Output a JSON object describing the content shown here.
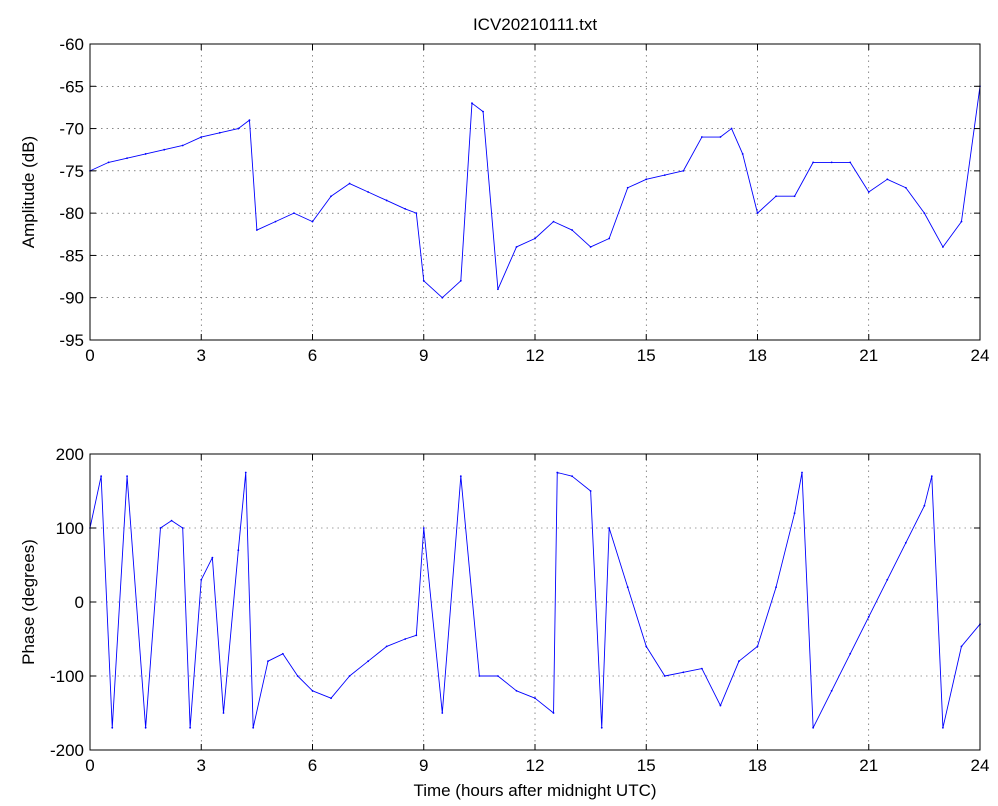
{
  "title": "ICV20210111.txt",
  "colors": {
    "series": "#0000ff",
    "axes": "#000000",
    "background": "#ffffff"
  },
  "chart_data": [
    {
      "type": "line",
      "title": "ICV20210111.txt",
      "xlabel": "",
      "ylabel": "Amplitude (dB)",
      "xlim": [
        0,
        24
      ],
      "ylim": [
        -95,
        -60
      ],
      "xticks": [
        "0",
        "3",
        "6",
        "9",
        "12",
        "15",
        "18",
        "21",
        "24"
      ],
      "yticks": [
        "-60",
        "-65",
        "-70",
        "-75",
        "-80",
        "-85",
        "-90",
        "-95"
      ],
      "grid": true,
      "series": [
        {
          "x": [
            0,
            0.5,
            1,
            1.5,
            2,
            2.5,
            3,
            3.5,
            4,
            4.3,
            4.5,
            5,
            5.5,
            6,
            6.5,
            7,
            7.5,
            8,
            8.5,
            8.8,
            9,
            9.5,
            10,
            10.3,
            10.6,
            11,
            11.5,
            12,
            12.5,
            13,
            13.5,
            14,
            14.5,
            15,
            15.5,
            16,
            16.5,
            17,
            17.3,
            17.6,
            18,
            18.5,
            19,
            19.5,
            20,
            20.5,
            21,
            21.5,
            22,
            22.5,
            23,
            23.5,
            24
          ],
          "y": [
            -75,
            -74,
            -73.5,
            -73,
            -72.5,
            -72,
            -71,
            -70.5,
            -70,
            -69,
            -82,
            -81,
            -80,
            -81,
            -78,
            -76.5,
            -77.5,
            -78.5,
            -79.5,
            -80,
            -88,
            -90,
            -88,
            -67,
            -68,
            -89,
            -84,
            -83,
            -81,
            -82,
            -84,
            -83,
            -77,
            -76,
            -75.5,
            -75,
            -71,
            -71,
            -70,
            -73,
            -80,
            -78,
            -78,
            -74,
            -74,
            -74,
            -77.5,
            -76,
            -77,
            -80,
            -84,
            -81,
            -65
          ]
        }
      ]
    },
    {
      "type": "line",
      "title": "",
      "xlabel": "Time (hours after midnight UTC)",
      "ylabel": "Phase (degrees)",
      "xlim": [
        0,
        24
      ],
      "ylim": [
        -200,
        200
      ],
      "xticks": [
        "0",
        "3",
        "6",
        "9",
        "12",
        "15",
        "18",
        "21",
        "24"
      ],
      "yticks": [
        "200",
        "100",
        "0",
        "-100",
        "-200"
      ],
      "grid": true,
      "series": [
        {
          "x": [
            0,
            0.3,
            0.6,
            1,
            1.5,
            1.9,
            2.2,
            2.5,
            2.7,
            3,
            3.3,
            3.6,
            4,
            4.2,
            4.4,
            4.8,
            5.2,
            5.6,
            6,
            6.5,
            7,
            7.5,
            8,
            8.5,
            8.8,
            9,
            9.5,
            10,
            10.5,
            11,
            11.5,
            12,
            12.5,
            12.6,
            13,
            13.5,
            13.8,
            14,
            14.5,
            15,
            15.5,
            16,
            16.5,
            17,
            17.5,
            18,
            18.5,
            19,
            19.2,
            19.5,
            20,
            20.5,
            21,
            21.5,
            22,
            22.5,
            22.7,
            23,
            23.5,
            24
          ],
          "y": [
            100,
            170,
            -170,
            170,
            -170,
            100,
            110,
            100,
            -170,
            30,
            60,
            -150,
            70,
            175,
            -170,
            -80,
            -70,
            -100,
            -120,
            -130,
            -100,
            -80,
            -60,
            -50,
            -45,
            100,
            -150,
            170,
            -100,
            -100,
            -120,
            -130,
            -150,
            175,
            170,
            150,
            -170,
            100,
            20,
            -60,
            -100,
            -95,
            -90,
            -140,
            -80,
            -60,
            20,
            120,
            175,
            -170,
            -120,
            -70,
            -20,
            30,
            80,
            130,
            170,
            -170,
            -60,
            -30
          ]
        }
      ]
    }
  ]
}
